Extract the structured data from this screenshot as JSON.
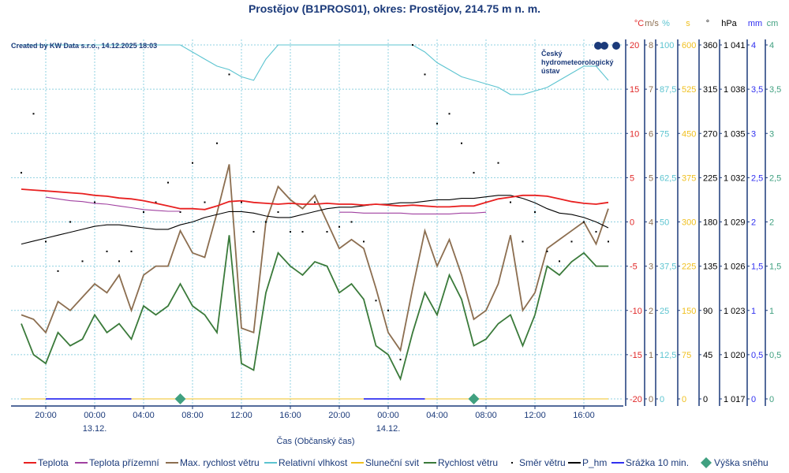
{
  "chart_data": {
    "type": "line",
    "title": "Prostějov (B1PROS01), okres: Prostějov, 214.75 m n. m.",
    "credit": "Created by KW Data s.r.o., 14.12.2025 18:03",
    "logo_text": [
      "Český",
      "hydrometeorologický",
      "ústav"
    ],
    "xlabel": "Čas (Občanský čas)",
    "x_unit": "hours since 12.12. 18:00",
    "x_range": [
      0,
      48
    ],
    "x_ticks": [
      {
        "h": 2,
        "label": "20:00",
        "date": ""
      },
      {
        "h": 6,
        "label": "00:00",
        "date": "13.12."
      },
      {
        "h": 10,
        "label": "04:00",
        "date": ""
      },
      {
        "h": 14,
        "label": "08:00",
        "date": ""
      },
      {
        "h": 18,
        "label": "12:00",
        "date": ""
      },
      {
        "h": 22,
        "label": "16:00",
        "date": ""
      },
      {
        "h": 26,
        "label": "20:00",
        "date": ""
      },
      {
        "h": 30,
        "label": "00:00",
        "date": "14.12."
      },
      {
        "h": 34,
        "label": "04:00",
        "date": ""
      },
      {
        "h": 38,
        "label": "08:00",
        "date": ""
      },
      {
        "h": 42,
        "label": "12:00",
        "date": ""
      },
      {
        "h": 46,
        "label": "16:00",
        "date": ""
      }
    ],
    "axes": [
      {
        "unit": "°C",
        "color": "#e02828",
        "range": [
          -20,
          20
        ],
        "ticks": [
          "20",
          "15",
          "10",
          "5",
          "0",
          "-5",
          "-10",
          "-15",
          "-20"
        ]
      },
      {
        "unit": "m/s",
        "color": "#8c6e50",
        "range": [
          0,
          8
        ],
        "ticks": [
          "8",
          "7",
          "6",
          "5",
          "4",
          "3",
          "2",
          "1",
          "0"
        ]
      },
      {
        "unit": "%",
        "color": "#5cc4d0",
        "range": [
          0,
          100
        ],
        "ticks": [
          "100",
          "87,5",
          "75",
          "62,5",
          "50",
          "37,5",
          "25",
          "12,5",
          "0"
        ]
      },
      {
        "unit": "s",
        "color": "#f0c020",
        "range": [
          0,
          600
        ],
        "ticks": [
          "600",
          "525",
          "450",
          "375",
          "300",
          "225",
          "150",
          "75",
          "0"
        ]
      },
      {
        "unit": "°",
        "color": "#000000",
        "range": [
          0,
          360
        ],
        "ticks": [
          "360",
          "315",
          "270",
          "225",
          "180",
          "135",
          "90",
          "45",
          "0"
        ]
      },
      {
        "unit": "hPa",
        "color": "#000000",
        "range": [
          1017,
          1041
        ],
        "ticks": [
          "1 041",
          "1 038",
          "1 035",
          "1 032",
          "1 029",
          "1 026",
          "1 023",
          "1 020",
          "1 017"
        ]
      },
      {
        "unit": "mm",
        "color": "#3030f0",
        "range": [
          0,
          4
        ],
        "ticks": [
          "4",
          "3,5",
          "3",
          "2,5",
          "2",
          "1,5",
          "1",
          "0,5",
          "0"
        ]
      },
      {
        "unit": "cm",
        "color": "#40a080",
        "range": [
          0,
          4
        ],
        "ticks": [
          "4",
          "3,5",
          "3",
          "2,5",
          "2",
          "1,5",
          "1",
          "0,5",
          "0"
        ]
      }
    ],
    "series": [
      {
        "name": "Teplota",
        "axis": 0,
        "color": "#e82020",
        "kind": "line",
        "values": [
          3.7,
          3.6,
          3.5,
          3.4,
          3.3,
          3.2,
          3.0,
          2.9,
          2.7,
          2.6,
          2.4,
          2.1,
          1.8,
          1.5,
          1.5,
          1.4,
          1.8,
          2.3,
          2.4,
          2.2,
          2.1,
          2.0,
          2.1,
          2.0,
          2.0,
          2.1,
          2.0,
          2.0,
          1.9,
          2.0,
          1.9,
          1.8,
          1.9,
          1.8,
          1.7,
          1.7,
          1.8,
          1.8,
          2.2,
          2.6,
          2.8,
          3.0,
          3.0,
          2.9,
          2.6,
          2.3,
          2.1,
          2.0,
          2.2
        ]
      },
      {
        "name": "Teplota přízemní",
        "axis": 0,
        "color": "#a040a0",
        "kind": "line",
        "values": [
          null,
          null,
          2.8,
          2.6,
          2.4,
          2.3,
          2.1,
          2.0,
          1.8,
          1.6,
          1.4,
          1.3,
          1.2,
          1.2,
          null,
          null,
          null,
          null,
          null,
          null,
          null,
          null,
          null,
          null,
          null,
          null,
          1.1,
          1.1,
          1.0,
          1.0,
          1.0,
          1.0,
          0.9,
          0.9,
          0.9,
          0.9,
          1.0,
          1.0,
          1.1,
          null,
          null,
          null,
          null,
          null,
          null,
          null,
          null,
          null,
          null
        ]
      },
      {
        "name": "Max. rychlost větru",
        "axis": 1,
        "color": "#8c6e50",
        "kind": "line",
        "values": [
          1.9,
          1.8,
          1.5,
          2.2,
          2.0,
          2.3,
          2.6,
          2.4,
          2.8,
          2.0,
          2.8,
          3.0,
          3.0,
          3.8,
          3.3,
          3.2,
          4.2,
          5.3,
          1.6,
          1.5,
          4.0,
          4.8,
          4.5,
          4.3,
          4.6,
          4.0,
          3.4,
          3.6,
          3.4,
          2.5,
          1.5,
          1.1,
          2.5,
          3.8,
          3.0,
          3.6,
          2.8,
          1.8,
          2.0,
          2.6,
          3.7,
          2.0,
          2.4,
          3.4,
          3.6,
          3.8,
          4.0,
          3.5,
          4.3
        ]
      },
      {
        "name": "Relativní vlhkost",
        "axis": 2,
        "color": "#5cc4d0",
        "kind": "line",
        "values": [
          100,
          100,
          100,
          100,
          100,
          100,
          100,
          100,
          100,
          100,
          100,
          100,
          100,
          100,
          98,
          96,
          94,
          93,
          91,
          90,
          96,
          100,
          100,
          100,
          100,
          100,
          100,
          100,
          100,
          100,
          100,
          100,
          100,
          98,
          95,
          93,
          91,
          90,
          89,
          88,
          86,
          86,
          87,
          88,
          90,
          92,
          94,
          94,
          90
        ]
      },
      {
        "name": "Sluneční svit",
        "axis": 3,
        "color": "#f0c020",
        "kind": "line",
        "values": [
          0,
          0,
          0,
          0,
          0,
          0,
          0,
          0,
          0,
          0,
          0,
          0,
          0,
          0,
          0,
          0,
          0,
          0,
          0,
          0,
          0,
          0,
          0,
          0,
          0,
          0,
          0,
          0,
          0,
          0,
          0,
          0,
          0,
          0,
          0,
          0,
          0,
          0,
          0,
          0,
          0,
          0,
          0,
          0,
          0,
          0,
          0,
          0,
          0
        ]
      },
      {
        "name": "Rychlost větru",
        "axis": 1,
        "color": "#3a7a3a",
        "kind": "line",
        "values": [
          1.7,
          1.0,
          0.8,
          1.5,
          1.2,
          1.35,
          1.9,
          1.5,
          1.7,
          1.35,
          2.1,
          1.9,
          2.1,
          2.6,
          2.1,
          1.9,
          1.5,
          3.7,
          0.8,
          0.65,
          2.4,
          3.3,
          3.0,
          2.8,
          3.1,
          3.0,
          2.4,
          2.6,
          2.25,
          1.2,
          1.0,
          0.45,
          1.5,
          2.4,
          1.9,
          2.8,
          2.25,
          1.2,
          1.35,
          1.7,
          1.9,
          1.2,
          1.9,
          3.0,
          2.8,
          3.1,
          3.3,
          3.0,
          3.0
        ]
      },
      {
        "name": "Směr větru",
        "axis": 4,
        "color": "#000000",
        "kind": "dots",
        "values": [
          230,
          290,
          160,
          130,
          180,
          140,
          200,
          150,
          140,
          150,
          190,
          200,
          220,
          190,
          240,
          200,
          260,
          330,
          200,
          170,
          180,
          190,
          170,
          170,
          200,
          170,
          175,
          180,
          160,
          100,
          90,
          40,
          360,
          330,
          280,
          290,
          260,
          230,
          200,
          240,
          200,
          160,
          190,
          150,
          140,
          160,
          180,
          170,
          160
        ]
      },
      {
        "name": "P_hm",
        "axis": 5,
        "color": "#000000",
        "kind": "line",
        "values": [
          1027.5,
          1027.7,
          1027.9,
          1028.1,
          1028.3,
          1028.5,
          1028.7,
          1028.8,
          1028.8,
          1028.7,
          1028.6,
          1028.5,
          1028.5,
          1028.8,
          1029.0,
          1029.3,
          1029.5,
          1029.7,
          1029.7,
          1029.6,
          1029.4,
          1029.3,
          1029.3,
          1029.5,
          1029.7,
          1029.9,
          1030.0,
          1030.0,
          1030.1,
          1030.2,
          1030.2,
          1030.3,
          1030.3,
          1030.4,
          1030.5,
          1030.5,
          1030.6,
          1030.6,
          1030.7,
          1030.8,
          1030.8,
          1030.6,
          1030.3,
          1029.9,
          1029.6,
          1029.5,
          1029.3,
          1029.0,
          1028.6
        ]
      },
      {
        "name": "Srážka 10 min.",
        "axis": 6,
        "color": "#3030f0",
        "kind": "segments",
        "values": [
          null,
          null,
          0,
          0,
          0,
          0,
          0,
          0,
          0,
          0,
          null,
          null,
          null,
          null,
          null,
          null,
          null,
          null,
          null,
          null,
          null,
          null,
          null,
          null,
          null,
          null,
          null,
          null,
          0,
          0,
          0,
          0,
          0,
          0,
          null,
          null,
          null,
          null,
          null,
          null,
          null,
          null,
          null,
          null,
          null,
          null,
          null,
          null,
          null
        ]
      },
      {
        "name": "Výška sněhu",
        "axis": 7,
        "color": "#40a080",
        "kind": "diamond",
        "points": [
          {
            "h": 13,
            "value": 0
          },
          {
            "h": 37,
            "value": 0
          }
        ]
      }
    ],
    "legend": [
      "Teplota",
      "Teplota přízemní",
      "Max. rychlost větru",
      "Relativní vlhkost",
      "Sluneční svit",
      "Rychlost větru",
      "Směr větru",
      "P_hm",
      "Srážka 10 min.",
      "Výška sněhu"
    ],
    "legend_position": "bottom",
    "grid": true
  }
}
